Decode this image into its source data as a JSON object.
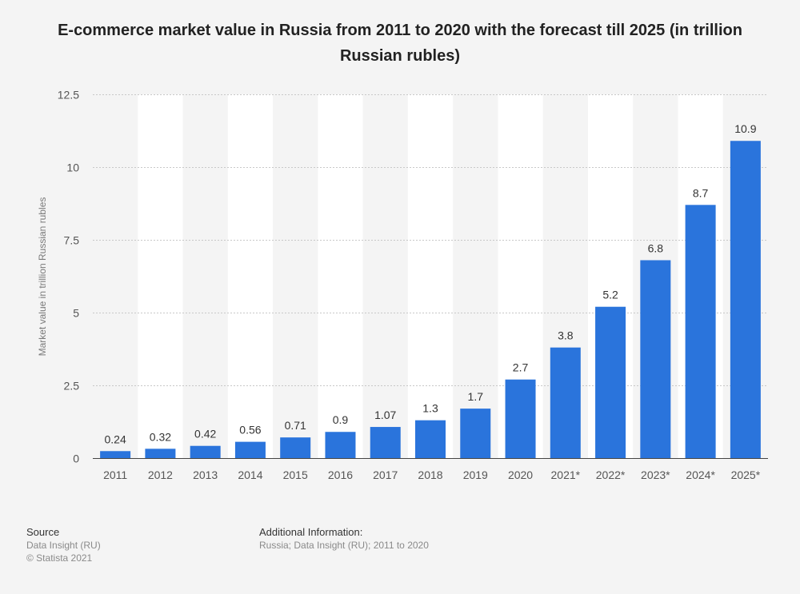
{
  "title": "E-commerce market value in Russia from 2011 to 2020 with the forecast till 2025 (in trillion Russian rubles)",
  "chart_data": {
    "type": "bar",
    "title": "E-commerce market value in Russia from 2011 to 2020 with the forecast till 2025 (in trillion Russian rubles)",
    "ylabel": "Market value in trillion Russian rubles",
    "xlabel": "",
    "ylim": [
      0,
      12.5
    ],
    "yticks": [
      0,
      2.5,
      5,
      7.5,
      10,
      12.5
    ],
    "ytick_labels": [
      "0",
      "2.5",
      "5",
      "7.5",
      "10",
      "12.5"
    ],
    "grid": true,
    "bar_color": "#2a74dc",
    "categories": [
      "2011",
      "2012",
      "2013",
      "2014",
      "2015",
      "2016",
      "2017",
      "2018",
      "2019",
      "2020",
      "2021*",
      "2022*",
      "2023*",
      "2024*",
      "2025*"
    ],
    "values": [
      0.24,
      0.32,
      0.42,
      0.56,
      0.71,
      0.9,
      1.07,
      1.3,
      1.7,
      2.7,
      3.8,
      5.2,
      6.8,
      8.7,
      10.9
    ],
    "value_labels": [
      "0.24",
      "0.32",
      "0.42",
      "0.56",
      "0.71",
      "0.9",
      "1.07",
      "1.3",
      "1.7",
      "2.7",
      "3.8",
      "5.2",
      "6.8",
      "8.7",
      "10.9"
    ]
  },
  "footer": {
    "source_heading": "Source",
    "source_lines": [
      "Data Insight (RU)",
      "© Statista 2021"
    ],
    "additional_heading": "Additional Information:",
    "additional_text": "Russia; Data Insight (RU); 2011 to 2020"
  }
}
